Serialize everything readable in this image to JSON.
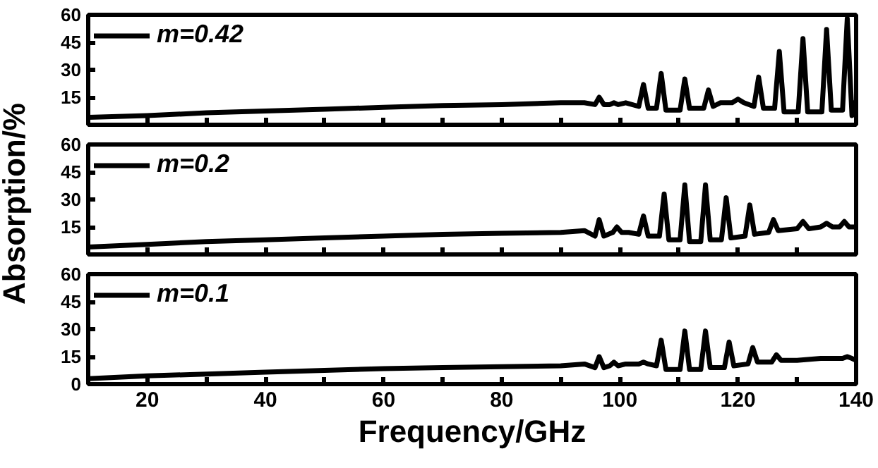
{
  "chart_data": [
    {
      "type": "line",
      "xlim": [
        10,
        140
      ],
      "ylim": [
        0,
        60
      ],
      "yticks": [
        15,
        30,
        45,
        60
      ],
      "xticks": [
        {
          "value": 10,
          "label": null
        },
        20,
        {
          "value": 30,
          "label": null
        },
        40,
        {
          "value": 50,
          "label": null
        },
        60,
        {
          "value": 70,
          "label": null
        },
        80,
        {
          "value": 90,
          "label": null
        },
        100,
        {
          "value": 110,
          "label": null
        },
        120,
        {
          "value": 130,
          "label": null
        },
        140
      ],
      "tick_labels": "y",
      "grid": false,
      "legend": "top left",
      "series": [
        {
          "name": "m=0.42",
          "color": "#000000",
          "x": [
            10,
            20,
            30,
            40,
            50,
            60,
            70,
            80,
            90,
            94,
            95.8,
            96.5,
            97.3,
            98.3,
            99,
            99.7,
            101,
            103.2,
            104,
            104.8,
            106.2,
            107,
            107.8,
            110.2,
            111,
            111.8,
            114.2,
            115,
            115.8,
            117,
            119,
            120,
            121,
            122.7,
            123.5,
            124.3,
            126.2,
            127,
            127.8,
            130.2,
            131,
            131.8,
            134.2,
            135,
            135.8,
            137.7,
            138.5,
            139.3,
            140
          ],
          "values": [
            4,
            5,
            6.5,
            7.5,
            8.5,
            9.5,
            10.5,
            11,
            12,
            12,
            11,
            15,
            11,
            11,
            12,
            11,
            12,
            10,
            22,
            9,
            9,
            28,
            8,
            8,
            25,
            9,
            9,
            19,
            10,
            12,
            12,
            14,
            12,
            10,
            26,
            9,
            9,
            40,
            7,
            7,
            47,
            7,
            7,
            52,
            8,
            8,
            58,
            5,
            13
          ]
        }
      ]
    },
    {
      "type": "line",
      "xlim": [
        10,
        140
      ],
      "ylim": [
        0,
        60
      ],
      "yticks": [
        15,
        30,
        45,
        60
      ],
      "xticks": [
        {
          "value": 10,
          "label": null
        },
        20,
        {
          "value": 30,
          "label": null
        },
        40,
        {
          "value": 50,
          "label": null
        },
        60,
        {
          "value": 70,
          "label": null
        },
        80,
        {
          "value": 90,
          "label": null
        },
        100,
        {
          "value": 110,
          "label": null
        },
        120,
        {
          "value": 130,
          "label": null
        },
        140
      ],
      "tick_labels": "y",
      "grid": false,
      "legend": "top left",
      "ylabel": "Absorption/%",
      "series": [
        {
          "name": "m=0.2",
          "color": "#000000",
          "x": [
            10,
            20,
            30,
            40,
            50,
            60,
            70,
            80,
            90,
            94,
            95.8,
            96.5,
            97.3,
            98.8,
            99.5,
            100.3,
            101.5,
            103.2,
            104,
            104.8,
            106.7,
            107.5,
            108.3,
            110.2,
            111,
            111.8,
            113.7,
            114.5,
            115.3,
            117.2,
            118,
            118.8,
            121.2,
            122,
            122.8,
            125.2,
            126,
            126.8,
            130,
            131,
            132,
            134,
            135,
            136,
            137.2,
            138,
            138.8,
            140
          ],
          "values": [
            4,
            5.5,
            7,
            8,
            9,
            10,
            11,
            11.5,
            12,
            13,
            10,
            19,
            10,
            12,
            15,
            12,
            12,
            11,
            21,
            10,
            10,
            33,
            8,
            8,
            38,
            7,
            7,
            38,
            8,
            8,
            31,
            9,
            10,
            27,
            11,
            12,
            19,
            13,
            14,
            18,
            14,
            15,
            17,
            15,
            15,
            18,
            15,
            15
          ]
        }
      ]
    },
    {
      "type": "line",
      "xlim": [
        10,
        140
      ],
      "ylim": [
        0,
        60
      ],
      "yticks": [
        0,
        15,
        30,
        45,
        60
      ],
      "xticks": [
        {
          "value": 10,
          "label": null
        },
        20,
        {
          "value": 30,
          "label": null
        },
        40,
        {
          "value": 50,
          "label": null
        },
        60,
        {
          "value": 70,
          "label": null
        },
        80,
        {
          "value": 90,
          "label": null
        },
        100,
        {
          "value": 110,
          "label": null
        },
        120,
        {
          "value": 130,
          "label": null
        },
        140
      ],
      "grid": false,
      "legend": "top left",
      "xlabel": "Frequency/GHz",
      "series": [
        {
          "name": "m=0.1",
          "color": "#000000",
          "x": [
            10,
            20,
            30,
            40,
            50,
            60,
            70,
            80,
            90,
            94,
            95.8,
            96.5,
            97.3,
            98.3,
            99,
            99.7,
            101,
            103.2,
            104,
            104.8,
            106.2,
            107,
            107.8,
            110.2,
            111,
            111.8,
            113.7,
            114.5,
            115.3,
            117.7,
            118.5,
            119.3,
            121.7,
            122.5,
            123.3,
            125.7,
            126.5,
            127.3,
            130,
            134,
            137.7,
            138.5,
            139.3,
            140
          ],
          "values": [
            3,
            4.5,
            5.5,
            6.5,
            7.5,
            8.5,
            9,
            9.5,
            10,
            11,
            9,
            15,
            9,
            10,
            12,
            10,
            11,
            11,
            12,
            11,
            10,
            24,
            8,
            8,
            29,
            8,
            8,
            29,
            9,
            9,
            23,
            10,
            11,
            20,
            12,
            12,
            16,
            13,
            13,
            14,
            14,
            15,
            14,
            13
          ]
        }
      ]
    }
  ]
}
